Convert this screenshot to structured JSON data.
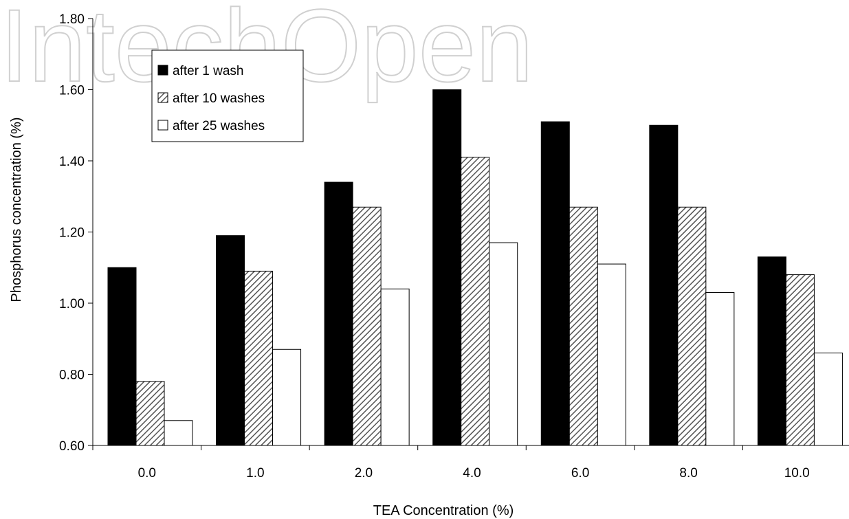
{
  "watermark": "IntechOpen",
  "chart_data": {
    "type": "bar",
    "title": "",
    "xlabel": "TEA Concentration (%)",
    "ylabel": "Phosphorus concentration (%)",
    "ylim": [
      0.6,
      1.8
    ],
    "y_ticks": [
      "0.60",
      "0.80",
      "1.00",
      "1.20",
      "1.40",
      "1.60",
      "1.80"
    ],
    "y_tick_values": [
      0.6,
      0.8,
      1.0,
      1.2,
      1.4,
      1.6,
      1.8
    ],
    "categories": [
      "0.0",
      "1.0",
      "2.0",
      "4.0",
      "6.0",
      "8.0",
      "10.0"
    ],
    "grid": false,
    "legend_position": "top-left",
    "series": [
      {
        "name": "after 1 wash",
        "fill": "solid-black",
        "values": [
          1.1,
          1.19,
          1.34,
          1.6,
          1.51,
          1.5,
          1.13
        ]
      },
      {
        "name": "after 10 washes",
        "fill": "diagonal-hatch",
        "values": [
          0.78,
          1.09,
          1.27,
          1.41,
          1.27,
          1.27,
          1.08
        ]
      },
      {
        "name": "after 25 washes",
        "fill": "white",
        "values": [
          0.67,
          0.87,
          1.04,
          1.17,
          1.11,
          1.03,
          0.86
        ]
      }
    ]
  }
}
